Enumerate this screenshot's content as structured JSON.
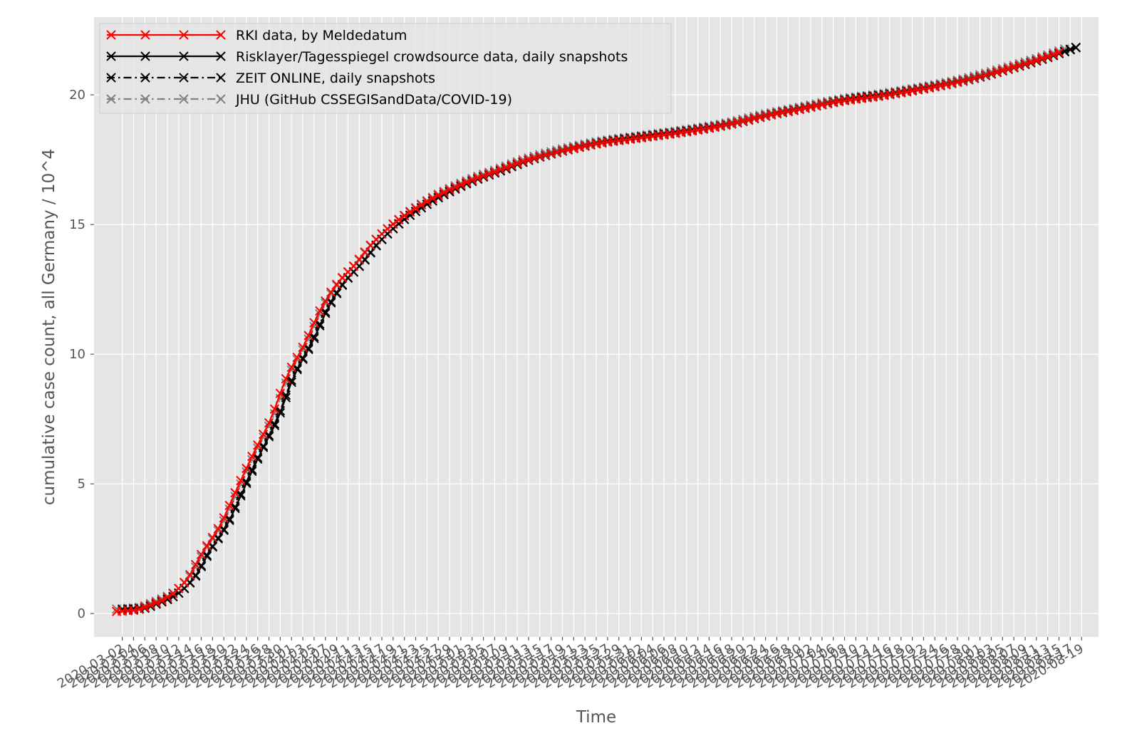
{
  "chart_data": {
    "type": "line",
    "title": "",
    "xlabel": "Time",
    "ylabel": "cumulative case count, all Germany / 10^4",
    "xlim": [
      "2020-02-26",
      "2020-08-22"
    ],
    "ylim": [
      -0.9,
      23
    ],
    "yticks": [
      0,
      5,
      10,
      15,
      20
    ],
    "grid": true,
    "legend_position": "upper-left",
    "x_ticks": {
      "start": "2020-03-02",
      "end": "2020-08-19",
      "step_days": 2
    },
    "anchors": {
      "x": [
        "2020-03-01",
        "2020-03-05",
        "2020-03-08",
        "2020-03-11",
        "2020-03-14",
        "2020-03-17",
        "2020-03-20",
        "2020-03-23",
        "2020-03-26",
        "2020-03-29",
        "2020-04-01",
        "2020-04-04",
        "2020-04-07",
        "2020-04-10",
        "2020-04-13",
        "2020-04-16",
        "2020-04-20",
        "2020-04-24",
        "2020-04-28",
        "2020-05-03",
        "2020-05-08",
        "2020-05-13",
        "2020-05-20",
        "2020-05-27",
        "2020-06-03",
        "2020-06-10",
        "2020-06-17",
        "2020-06-24",
        "2020-07-01",
        "2020-07-08",
        "2020-07-15",
        "2020-07-22",
        "2020-07-29",
        "2020-08-05",
        "2020-08-12",
        "2020-08-18"
      ],
      "y": [
        0.12,
        0.18,
        0.4,
        0.7,
        1.3,
        2.4,
        3.4,
        4.8,
        6.2,
        7.5,
        9.2,
        10.4,
        11.8,
        12.8,
        13.5,
        14.3,
        15.1,
        15.7,
        16.2,
        16.7,
        17.1,
        17.5,
        17.9,
        18.2,
        18.4,
        18.6,
        18.85,
        19.2,
        19.5,
        19.8,
        20.0,
        20.25,
        20.55,
        20.95,
        21.4,
        21.85
      ]
    },
    "series": [
      {
        "name": "RKI data, by Meldedatum",
        "color": "#ff0000",
        "style": "solid",
        "start": "2020-03-01",
        "end": "2020-08-15",
        "shift_days": -0.8,
        "y_offset": -0.05
      },
      {
        "name": "Risklayer/Tagesspiegel crowdsource data, daily snapshots",
        "color": "#000000",
        "style": "solid",
        "start": "2020-03-02",
        "end": "2020-08-18",
        "shift_days": 0.6,
        "y_offset": 0.03
      },
      {
        "name": "ZEIT ONLINE, daily snapshots",
        "color": "#000000",
        "style": "dashdot",
        "start": "2020-03-03",
        "end": "2020-08-18",
        "shift_days": 0.4,
        "y_offset": 0.0
      },
      {
        "name": "JHU (GitHub CSSEGISandData/COVID-19)",
        "color": "#808080",
        "style": "dashdot",
        "start": "2020-03-01",
        "end": "2020-08-16",
        "shift_days": -0.3,
        "y_offset": 0.05
      }
    ]
  }
}
